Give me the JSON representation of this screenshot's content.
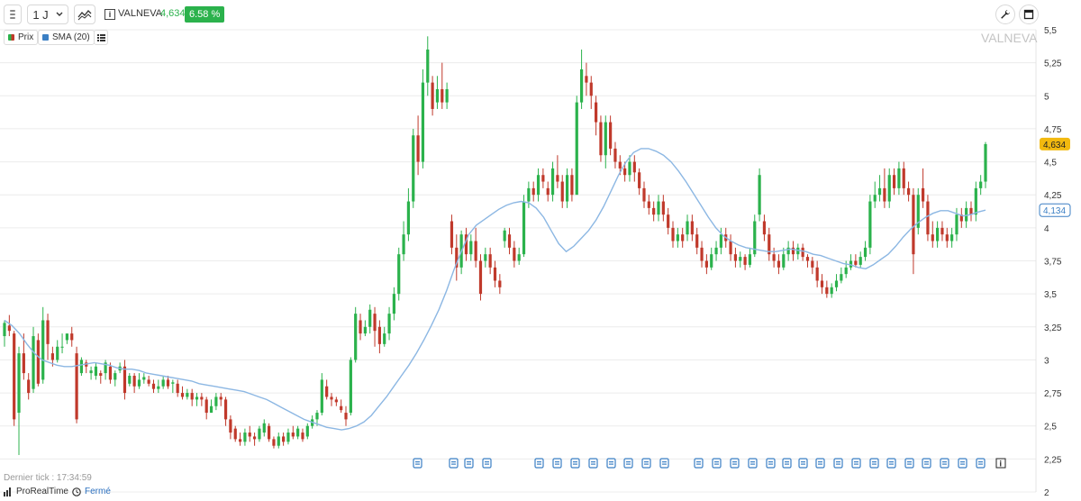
{
  "toolbar": {
    "period_label": "1 J",
    "symbol": "VALNEVA",
    "last_price": "4,634",
    "change_pct": "6.58 %"
  },
  "legend": {
    "price_label": "Prix",
    "sma_label": "SMA (20)"
  },
  "watermark": "VALNEVA",
  "footer": {
    "last_tick_label": "Dernier tick : 17:34:59",
    "brand": "ProRealTime",
    "status": "Fermé"
  },
  "colors": {
    "up": "#2bb24c",
    "down": "#c0392b",
    "sma": "#8cb7e3",
    "price_tag": "#f2b90f",
    "sma_tag": "#3b7fc4"
  },
  "icons": [
    "grip-icon",
    "chevron-down-icon",
    "chart-type-icon",
    "info-icon",
    "wrench-icon",
    "window-icon",
    "list-icon",
    "calendar-event-icon",
    "clock-icon"
  ],
  "chart_data": {
    "type": "candlestick",
    "y_ticks": [
      "5,5",
      "5,25",
      "5",
      "4,75",
      "4,5",
      "4,25",
      "4",
      "3,75",
      "3,5",
      "3,25",
      "3",
      "2,75",
      "2,5",
      "2,25",
      "2"
    ],
    "ylim": [
      2,
      5.5
    ],
    "grid": true,
    "price_tag": {
      "value": 4.634,
      "label": "4,634"
    },
    "sma_tag": {
      "value": 4.134,
      "label": "4,134"
    },
    "candles": [
      [
        3.18,
        3.28,
        3.3,
        3.1
      ],
      [
        3.26,
        3.22,
        3.34,
        3.18
      ],
      [
        3.2,
        2.55,
        3.22,
        2.5
      ],
      [
        2.6,
        3.05,
        3.1,
        2.28
      ],
      [
        3.05,
        2.9,
        3.2,
        2.85
      ],
      [
        2.85,
        2.75,
        2.9,
        2.7
      ],
      [
        2.78,
        3.18,
        3.25,
        2.75
      ],
      [
        3.15,
        2.82,
        3.2,
        2.8
      ],
      [
        2.85,
        3.3,
        3.4,
        2.82
      ],
      [
        3.3,
        3.12,
        3.35,
        3
      ],
      [
        3.05,
        3.0,
        3.1,
        2.95
      ],
      [
        3.0,
        3.1,
        3.15,
        2.98
      ],
      [
        3.1,
        3.1,
        3.2,
        3.05
      ],
      [
        3.15,
        3.2,
        3.18,
        3.12
      ],
      [
        3.2,
        3.15,
        3.25,
        3.1
      ],
      [
        3.05,
        2.55,
        3.1,
        2.52
      ],
      [
        2.9,
        3.0,
        3.02,
        2.88
      ],
      [
        2.98,
        2.95,
        3.0,
        2.9
      ],
      [
        2.9,
        2.92,
        2.95,
        2.85
      ],
      [
        2.88,
        2.95,
        2.98,
        2.85
      ],
      [
        2.9,
        2.88,
        2.92,
        2.82
      ],
      [
        2.9,
        2.98,
        3.0,
        2.85
      ],
      [
        2.95,
        2.85,
        2.98,
        2.82
      ],
      [
        2.85,
        2.9,
        2.92,
        2.8
      ],
      [
        2.92,
        2.95,
        2.98,
        2.9
      ],
      [
        2.95,
        2.75,
        3.0,
        2.7
      ],
      [
        2.82,
        2.88,
        2.9,
        2.8
      ],
      [
        2.88,
        2.8,
        2.9,
        2.75
      ],
      [
        2.8,
        2.85,
        2.9,
        2.78
      ],
      [
        2.85,
        2.87,
        2.9,
        2.82
      ],
      [
        2.85,
        2.82,
        2.88,
        2.8
      ],
      [
        2.82,
        2.78,
        2.85,
        2.75
      ],
      [
        2.78,
        2.8,
        2.85,
        2.75
      ],
      [
        2.8,
        2.85,
        2.88,
        2.78
      ],
      [
        2.85,
        2.8,
        2.88,
        2.78
      ],
      [
        2.82,
        2.83,
        2.85,
        2.75
      ],
      [
        2.82,
        2.75,
        2.85,
        2.72
      ],
      [
        2.75,
        2.72,
        2.8,
        2.7
      ],
      [
        2.72,
        2.75,
        2.78,
        2.7
      ],
      [
        2.75,
        2.7,
        2.78,
        2.65
      ],
      [
        2.7,
        2.72,
        2.75,
        2.65
      ],
      [
        2.72,
        2.7,
        2.75,
        2.65
      ],
      [
        2.7,
        2.6,
        2.72,
        2.55
      ],
      [
        2.6,
        2.65,
        2.7,
        2.6
      ],
      [
        2.65,
        2.72,
        2.75,
        2.62
      ],
      [
        2.72,
        2.7,
        2.75,
        2.65
      ],
      [
        2.7,
        2.55,
        2.72,
        2.5
      ],
      [
        2.55,
        2.45,
        2.58,
        2.4
      ],
      [
        2.48,
        2.4,
        2.5,
        2.38
      ],
      [
        2.4,
        2.38,
        2.45,
        2.35
      ],
      [
        2.38,
        2.45,
        2.48,
        2.35
      ],
      [
        2.45,
        2.42,
        2.5,
        2.38
      ],
      [
        2.42,
        2.4,
        2.45,
        2.35
      ],
      [
        2.4,
        2.48,
        2.5,
        2.38
      ],
      [
        2.45,
        2.52,
        2.55,
        2.42
      ],
      [
        2.5,
        2.4,
        2.52,
        2.38
      ],
      [
        2.4,
        2.35,
        2.42,
        2.33
      ],
      [
        2.35,
        2.42,
        2.45,
        2.33
      ],
      [
        2.42,
        2.38,
        2.45,
        2.35
      ],
      [
        2.38,
        2.45,
        2.48,
        2.36
      ],
      [
        2.45,
        2.42,
        2.5,
        2.4
      ],
      [
        2.42,
        2.48,
        2.5,
        2.4
      ],
      [
        2.45,
        2.4,
        2.48,
        2.38
      ],
      [
        2.42,
        2.5,
        2.52,
        2.4
      ],
      [
        2.5,
        2.55,
        2.58,
        2.48
      ],
      [
        2.55,
        2.6,
        2.62,
        2.5
      ],
      [
        2.6,
        2.85,
        2.9,
        2.58
      ],
      [
        2.8,
        2.72,
        2.85,
        2.7
      ],
      [
        2.72,
        2.7,
        2.75,
        2.65
      ],
      [
        2.7,
        2.68,
        2.72,
        2.65
      ],
      [
        2.65,
        2.62,
        2.7,
        2.6
      ],
      [
        2.6,
        2.55,
        2.65,
        2.5
      ],
      [
        2.6,
        3.0,
        3.02,
        2.58
      ],
      [
        3.0,
        3.35,
        3.4,
        2.98
      ],
      [
        3.3,
        3.2,
        3.35,
        3.15
      ],
      [
        3.2,
        3.25,
        3.3,
        3.18
      ],
      [
        3.25,
        3.38,
        3.42,
        3.2
      ],
      [
        3.35,
        3.22,
        3.4,
        3.1
      ],
      [
        3.25,
        3.12,
        3.3,
        3.05
      ],
      [
        3.12,
        3.2,
        3.25,
        3.1
      ],
      [
        3.2,
        3.35,
        3.4,
        3.15
      ],
      [
        3.35,
        3.5,
        3.55,
        3.3
      ],
      [
        3.5,
        3.8,
        3.85,
        3.45
      ],
      [
        3.8,
        3.95,
        4.05,
        3.75
      ],
      [
        3.95,
        4.2,
        4.3,
        3.9
      ],
      [
        4.2,
        4.7,
        4.75,
        4.15
      ],
      [
        4.7,
        4.5,
        4.85,
        4.4
      ],
      [
        4.5,
        5.1,
        5.2,
        4.45
      ],
      [
        5.1,
        5.35,
        5.45,
        5.0
      ],
      [
        5.1,
        4.9,
        5.15,
        4.85
      ],
      [
        4.95,
        5.05,
        5.15,
        4.9
      ],
      [
        5.05,
        4.95,
        5.25,
        4.9
      ],
      [
        4.95,
        5.05,
        5.1,
        4.9
      ],
      [
        4.05,
        3.85,
        4.1,
        3.8
      ],
      [
        3.85,
        3.7,
        3.95,
        3.6
      ],
      [
        3.7,
        3.95,
        3.98,
        3.65
      ],
      [
        3.95,
        3.8,
        4.0,
        3.75
      ],
      [
        3.8,
        3.9,
        3.95,
        3.75
      ],
      [
        3.9,
        3.75,
        4.0,
        3.7
      ],
      [
        3.75,
        3.5,
        3.8,
        3.45
      ],
      [
        3.75,
        3.8,
        3.85,
        3.7
      ],
      [
        3.8,
        3.7,
        3.85,
        3.65
      ],
      [
        3.7,
        3.6,
        3.75,
        3.55
      ],
      [
        3.6,
        3.55,
        3.65,
        3.5
      ],
      [
        3.9,
        3.98,
        4.0,
        3.85
      ],
      [
        3.95,
        3.85,
        4.0,
        3.8
      ],
      [
        3.85,
        3.75,
        3.9,
        3.7
      ],
      [
        3.75,
        3.8,
        3.85,
        3.72
      ],
      [
        3.8,
        4.2,
        4.25,
        3.78
      ],
      [
        4.2,
        4.3,
        4.35,
        4.15
      ],
      [
        4.3,
        4.25,
        4.35,
        4.2
      ],
      [
        4.25,
        4.4,
        4.45,
        4.2
      ],
      [
        4.4,
        4.35,
        4.45,
        4.3
      ],
      [
        4.3,
        4.25,
        4.35,
        4.2
      ],
      [
        4.25,
        4.45,
        4.5,
        4.2
      ],
      [
        4.4,
        4.35,
        4.55,
        4.3
      ],
      [
        4.35,
        4.2,
        4.4,
        4.15
      ],
      [
        4.2,
        4.4,
        4.45,
        4.15
      ],
      [
        4.4,
        4.25,
        4.45,
        4.2
      ],
      [
        4.25,
        4.95,
        5.0,
        4.7
      ],
      [
        4.95,
        5.2,
        5.35,
        4.9
      ],
      [
        5.15,
        5.1,
        5.25,
        5.0
      ],
      [
        5.1,
        5.0,
        5.15,
        4.9
      ],
      [
        4.95,
        4.8,
        5.0,
        4.7
      ],
      [
        4.8,
        4.55,
        4.85,
        4.5
      ],
      [
        4.55,
        4.8,
        4.85,
        4.45
      ],
      [
        4.8,
        4.6,
        4.85,
        4.55
      ],
      [
        4.6,
        4.5,
        4.65,
        4.45
      ],
      [
        4.5,
        4.45,
        4.55,
        4.4
      ],
      [
        4.45,
        4.4,
        4.5,
        4.35
      ],
      [
        4.4,
        4.5,
        4.55,
        4.35
      ],
      [
        4.5,
        4.42,
        4.55,
        4.35
      ],
      [
        4.42,
        4.3,
        4.45,
        4.25
      ],
      [
        4.3,
        4.2,
        4.35,
        4.15
      ],
      [
        4.2,
        4.15,
        4.25,
        4.1
      ],
      [
        4.15,
        4.1,
        4.2,
        4.05
      ],
      [
        4.1,
        4.2,
        4.25,
        4.05
      ],
      [
        4.2,
        4.1,
        4.25,
        4.05
      ],
      [
        4.1,
        4.0,
        4.15,
        3.95
      ],
      [
        4.0,
        3.9,
        4.05,
        3.85
      ],
      [
        3.9,
        3.95,
        4.0,
        3.85
      ],
      [
        3.95,
        3.9,
        4.0,
        3.85
      ],
      [
        3.95,
        4.05,
        4.1,
        3.9
      ],
      [
        4.05,
        3.95,
        4.1,
        3.9
      ],
      [
        3.95,
        3.85,
        4.0,
        3.8
      ],
      [
        3.85,
        3.75,
        3.9,
        3.7
      ],
      [
        3.75,
        3.7,
        3.8,
        3.65
      ],
      [
        3.7,
        3.8,
        3.85,
        3.68
      ],
      [
        3.8,
        3.85,
        3.9,
        3.75
      ],
      [
        3.85,
        3.95,
        4.0,
        3.8
      ],
      [
        3.95,
        3.9,
        4.0,
        3.85
      ],
      [
        3.9,
        3.8,
        3.95,
        3.75
      ],
      [
        3.8,
        3.75,
        3.85,
        3.7
      ],
      [
        3.75,
        3.78,
        3.82,
        3.7
      ],
      [
        3.78,
        3.72,
        3.8,
        3.68
      ],
      [
        3.72,
        3.8,
        3.85,
        3.7
      ],
      [
        3.8,
        4.05,
        4.1,
        3.78
      ],
      [
        4.1,
        4.4,
        4.45,
        4.05
      ],
      [
        4.05,
        3.95,
        4.1,
        3.9
      ],
      [
        3.95,
        3.8,
        4.0,
        3.75
      ],
      [
        3.8,
        3.75,
        3.85,
        3.7
      ],
      [
        3.75,
        3.7,
        3.8,
        3.65
      ],
      [
        3.7,
        3.8,
        3.85,
        3.68
      ],
      [
        3.8,
        3.85,
        3.9,
        3.75
      ],
      [
        3.85,
        3.8,
        3.9,
        3.75
      ],
      [
        3.8,
        3.85,
        3.88,
        3.76
      ],
      [
        3.85,
        3.78,
        3.88,
        3.75
      ],
      [
        3.78,
        3.75,
        3.8,
        3.7
      ],
      [
        3.75,
        3.7,
        3.78,
        3.65
      ],
      [
        3.7,
        3.6,
        3.75,
        3.55
      ],
      [
        3.6,
        3.55,
        3.65,
        3.5
      ],
      [
        3.55,
        3.5,
        3.6,
        3.47
      ],
      [
        3.5,
        3.55,
        3.58,
        3.47
      ],
      [
        3.55,
        3.6,
        3.65,
        3.52
      ],
      [
        3.6,
        3.65,
        3.7,
        3.58
      ],
      [
        3.65,
        3.7,
        3.75,
        3.62
      ],
      [
        3.7,
        3.75,
        3.8,
        3.68
      ],
      [
        3.75,
        3.72,
        3.8,
        3.7
      ],
      [
        3.72,
        3.78,
        3.82,
        3.7
      ],
      [
        3.78,
        3.85,
        3.9,
        3.75
      ],
      [
        3.85,
        4.2,
        4.25,
        3.8
      ],
      [
        4.2,
        4.25,
        4.35,
        4.15
      ],
      [
        4.25,
        4.3,
        4.4,
        4.2
      ],
      [
        4.3,
        4.2,
        4.45,
        4.15
      ],
      [
        4.2,
        4.4,
        4.45,
        4.15
      ],
      [
        4.4,
        4.3,
        4.45,
        4.25
      ],
      [
        4.3,
        4.45,
        4.5,
        4.25
      ],
      [
        4.45,
        4.3,
        4.5,
        4.25
      ],
      [
        4.3,
        4.25,
        4.35,
        4.2
      ],
      [
        4.25,
        3.8,
        4.3,
        3.65
      ],
      [
        4.0,
        4.25,
        4.3,
        3.95
      ],
      [
        4.3,
        4.2,
        4.45,
        4.15
      ],
      [
        4.2,
        3.95,
        4.25,
        3.9
      ],
      [
        3.95,
        3.9,
        4.05,
        3.85
      ],
      [
        3.9,
        4.0,
        4.05,
        3.85
      ],
      [
        4.0,
        3.95,
        4.05,
        3.9
      ],
      [
        3.95,
        3.9,
        4.0,
        3.85
      ],
      [
        3.9,
        3.95,
        4.0,
        3.85
      ],
      [
        3.95,
        4.1,
        4.15,
        3.9
      ],
      [
        4.1,
        4.05,
        4.15,
        4.0
      ],
      [
        4.05,
        4.15,
        4.2,
        4.0
      ],
      [
        4.15,
        4.1,
        4.2,
        4.05
      ],
      [
        4.1,
        4.3,
        4.35,
        4.05
      ],
      [
        4.3,
        4.35,
        4.4,
        4.25
      ],
      [
        4.35,
        4.634,
        4.65,
        4.3
      ]
    ],
    "sma_20": [
      3.3,
      3.26,
      3.2,
      3.12,
      3.05,
      3.0,
      2.98,
      2.96,
      2.95,
      2.95,
      2.96,
      2.97,
      2.98,
      2.97,
      2.96,
      2.94,
      2.93,
      2.93,
      2.92,
      2.9,
      2.89,
      2.88,
      2.87,
      2.86,
      2.85,
      2.84,
      2.82,
      2.81,
      2.8,
      2.79,
      2.78,
      2.77,
      2.76,
      2.74,
      2.72,
      2.7,
      2.67,
      2.64,
      2.61,
      2.58,
      2.55,
      2.53,
      2.51,
      2.49,
      2.48,
      2.47,
      2.48,
      2.5,
      2.53,
      2.58,
      2.65,
      2.72,
      2.8,
      2.88,
      2.96,
      3.05,
      3.15,
      3.26,
      3.38,
      3.52,
      3.68,
      3.82,
      3.95,
      4.02,
      4.06,
      4.1,
      4.14,
      4.17,
      4.19,
      4.2,
      4.19,
      4.15,
      4.08,
      3.98,
      3.88,
      3.82,
      3.86,
      3.92,
      3.98,
      4.06,
      4.16,
      4.28,
      4.4,
      4.5,
      4.57,
      4.6,
      4.6,
      4.58,
      4.55,
      4.5,
      4.43,
      4.35,
      4.26,
      4.17,
      4.08,
      4.0,
      3.94,
      3.9,
      3.87,
      3.85,
      3.84,
      3.83,
      3.82,
      3.82,
      3.83,
      3.84,
      3.83,
      3.82,
      3.8,
      3.79,
      3.77,
      3.75,
      3.73,
      3.72,
      3.7,
      3.69,
      3.72,
      3.76,
      3.8,
      3.86,
      3.93,
      3.99,
      4.04,
      4.08,
      4.11,
      4.13,
      4.13,
      4.11,
      4.09,
      4.1,
      4.12,
      4.134
    ]
  }
}
